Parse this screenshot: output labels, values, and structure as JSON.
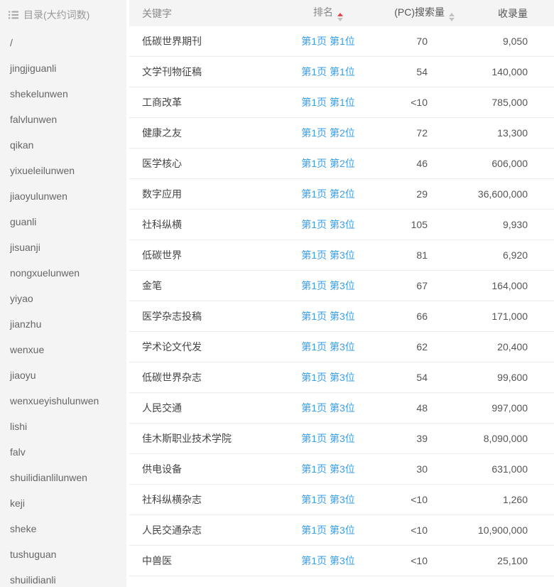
{
  "colors": {
    "link": "#3b9de4",
    "sort_active": "#e64545"
  },
  "sidebar": {
    "title": "目录(大约词数)",
    "items": [
      "/",
      "jingjiguanli",
      "shekelunwen",
      "falvlunwen",
      "qikan",
      "yixueleilunwen",
      "jiaoyulunwen",
      "guanli",
      "jisuanji",
      "nongxuelunwen",
      "yiyao",
      "jianzhu",
      "wenxue",
      "jiaoyu",
      "wenxueyishulunwen",
      "lishi",
      "falv",
      "shuilidianlilunwen",
      "keji",
      "sheke",
      "tushuguan",
      "shuilidianli"
    ]
  },
  "table": {
    "columns": {
      "keyword": "关键字",
      "rank": "排名",
      "search": "(PC)搜索量",
      "index": "收录量"
    },
    "sort": {
      "rank": "ascending",
      "search": "none"
    },
    "rows": [
      {
        "keyword": "低碳世界期刊",
        "rank": "第1页 第1位",
        "search_volume": "70",
        "index_volume": "9,050"
      },
      {
        "keyword": "文学刊物征稿",
        "rank": "第1页 第1位",
        "search_volume": "54",
        "index_volume": "140,000"
      },
      {
        "keyword": "工商改革",
        "rank": "第1页 第1位",
        "search_volume": "<10",
        "index_volume": "785,000"
      },
      {
        "keyword": "健康之友",
        "rank": "第1页 第2位",
        "search_volume": "72",
        "index_volume": "13,300"
      },
      {
        "keyword": "医学核心",
        "rank": "第1页 第2位",
        "search_volume": "46",
        "index_volume": "606,000"
      },
      {
        "keyword": "数字应用",
        "rank": "第1页 第2位",
        "search_volume": "29",
        "index_volume": "36,600,000"
      },
      {
        "keyword": "社科纵横",
        "rank": "第1页 第3位",
        "search_volume": "105",
        "index_volume": "9,930"
      },
      {
        "keyword": "低碳世界",
        "rank": "第1页 第3位",
        "search_volume": "81",
        "index_volume": "6,920"
      },
      {
        "keyword": "金笔",
        "rank": "第1页 第3位",
        "search_volume": "67",
        "index_volume": "164,000"
      },
      {
        "keyword": "医学杂志投稿",
        "rank": "第1页 第3位",
        "search_volume": "66",
        "index_volume": "171,000"
      },
      {
        "keyword": "学术论文代发",
        "rank": "第1页 第3位",
        "search_volume": "62",
        "index_volume": "20,400"
      },
      {
        "keyword": "低碳世界杂志",
        "rank": "第1页 第3位",
        "search_volume": "54",
        "index_volume": "99,600"
      },
      {
        "keyword": "人民交通",
        "rank": "第1页 第3位",
        "search_volume": "48",
        "index_volume": "997,000"
      },
      {
        "keyword": "佳木斯职业技术学院",
        "rank": "第1页 第3位",
        "search_volume": "39",
        "index_volume": "8,090,000"
      },
      {
        "keyword": "供电设备",
        "rank": "第1页 第3位",
        "search_volume": "30",
        "index_volume": "631,000"
      },
      {
        "keyword": "社科纵横杂志",
        "rank": "第1页 第3位",
        "search_volume": "<10",
        "index_volume": "1,260"
      },
      {
        "keyword": "人民交通杂志",
        "rank": "第1页 第3位",
        "search_volume": "<10",
        "index_volume": "10,900,000"
      },
      {
        "keyword": "中兽医",
        "rank": "第1页 第3位",
        "search_volume": "<10",
        "index_volume": "25,100"
      }
    ]
  }
}
